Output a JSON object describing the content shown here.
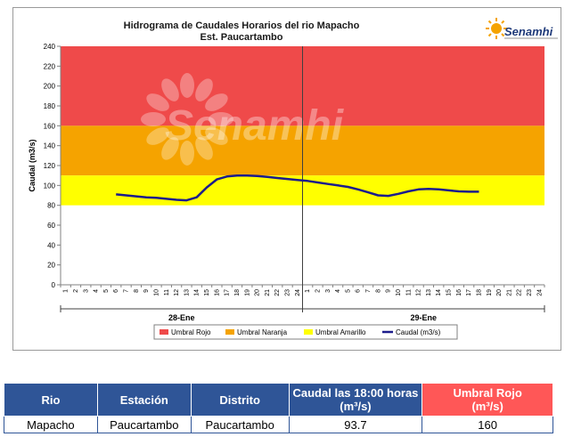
{
  "brand": {
    "logo_text": "Senamhi",
    "watermark": "Senamhi"
  },
  "chart_data": {
    "type": "line",
    "title": "Hidrograma de Caudales Horarios del rio Mapacho",
    "subtitle": "Est. Paucartambo",
    "ylabel": "Caudal  (m3/s)",
    "xlabel": "",
    "ylim": [
      0,
      240
    ],
    "yticks": [
      0,
      20,
      40,
      60,
      80,
      100,
      120,
      140,
      160,
      180,
      200,
      220,
      240
    ],
    "x_hours": [
      "1",
      "2",
      "3",
      "4",
      "5",
      "6",
      "7",
      "8",
      "9",
      "10",
      "11",
      "12",
      "13",
      "14",
      "15",
      "16",
      "17",
      "18",
      "19",
      "20",
      "21",
      "22",
      "23",
      "24",
      "1",
      "2",
      "3",
      "4",
      "5",
      "6",
      "7",
      "8",
      "9",
      "10",
      "11",
      "12",
      "13",
      "14",
      "15",
      "16",
      "17",
      "18",
      "19",
      "20",
      "21",
      "22",
      "23",
      "24"
    ],
    "days": [
      "28-Ene",
      "29-Ene"
    ],
    "bands": [
      {
        "name": "Umbral Rojo",
        "from": 160,
        "to": 240,
        "color": "#ef4a4a"
      },
      {
        "name": "Umbral Naranja",
        "from": 110,
        "to": 160,
        "color": "#f5a300"
      },
      {
        "name": "Umbral Amarillo",
        "from": 80,
        "to": 110,
        "color": "#ffff00"
      }
    ],
    "series": [
      {
        "name": "Caudal (m3/s)",
        "color": "#1c1c8c",
        "x_index": [
          6,
          7,
          8,
          9,
          10,
          11,
          12,
          13,
          14,
          15,
          16,
          17,
          18,
          19,
          20,
          21,
          22,
          23,
          24,
          25,
          26,
          27,
          28,
          29,
          30,
          31,
          32,
          33,
          34,
          35,
          36,
          37,
          38,
          39,
          40,
          41,
          42
        ],
        "values": [
          91,
          90,
          89,
          88,
          87.5,
          86.5,
          85.5,
          85,
          88,
          98,
          106,
          109,
          110,
          110,
          109.5,
          108.5,
          107.5,
          106.5,
          105.5,
          104.5,
          103,
          101.5,
          100,
          98.5,
          96,
          93,
          90,
          89.5,
          91.5,
          94,
          96,
          96.5,
          96,
          95,
          94,
          93.7,
          93.7
        ]
      }
    ],
    "legend": [
      "Umbral Rojo",
      "Umbral Naranja",
      "Umbral Amarillo",
      "Caudal (m3/s)"
    ],
    "legend_position": "bottom"
  },
  "table": {
    "headers": [
      "Rio",
      "Estación",
      "Distrito",
      "Caudal las 18:00 horas",
      "Umbral Rojo"
    ],
    "units": [
      "",
      "",
      "",
      "(m³/s)",
      "(m³/s)"
    ],
    "row": [
      "Mapacho",
      "Paucartambo",
      "Paucartambo",
      "93.7",
      "160"
    ]
  }
}
